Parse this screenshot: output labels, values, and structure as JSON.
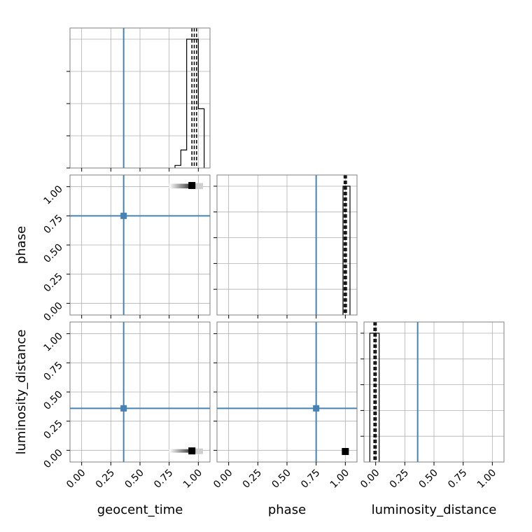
{
  "chart_data": {
    "type": "corner",
    "parameters": [
      "geocent_time",
      "phase",
      "luminosity_distance"
    ],
    "axis_labels": {
      "x": [
        "geocent_time",
        "phase",
        "luminosity_distance"
      ],
      "y": [
        "phase",
        "luminosity_distance"
      ]
    },
    "ticks": [
      0.0,
      0.25,
      0.5,
      0.75,
      1.0
    ],
    "tick_labels": [
      "0.00",
      "0.25",
      "0.50",
      "0.75",
      "1.00"
    ],
    "ranges": [
      [
        -0.1,
        1.1
      ],
      [
        -0.1,
        1.1
      ],
      [
        -0.1,
        1.1
      ]
    ],
    "grid": true,
    "truth_color": "#4682b4",
    "truths": [
      0.36,
      0.75,
      0.36
    ],
    "histograms": [
      {
        "parameter": "geocent_time",
        "bins": [
          0.8,
          0.85,
          0.9,
          0.95,
          1.0,
          1.05
        ],
        "counts": [
          0.02,
          0.14,
          1.0,
          1.0,
          0.46
        ],
        "quantiles": [
          0.945,
          0.965,
          0.985
        ]
      },
      {
        "parameter": "phase",
        "bins": [
          0.98,
          1.0,
          1.04
        ],
        "counts": [
          1.0,
          1.0
        ],
        "quantiles": [
          0.99,
          1.0,
          1.01
        ]
      },
      {
        "parameter": "luminosity_distance",
        "bins": [
          -0.05,
          0.0,
          0.03
        ],
        "counts": [
          1.0,
          1.0
        ],
        "quantiles": [
          -0.015,
          -0.005,
          0.005
        ]
      }
    ],
    "scatter_panels": [
      {
        "x": "geocent_time",
        "y": "phase",
        "spread": [
          0.75,
          1.02,
          0.985,
          1.025
        ],
        "peak": [
          0.945,
          1.01
        ]
      },
      {
        "x": "geocent_time",
        "y": "luminosity_distance",
        "spread": [
          0.75,
          1.02,
          -0.02,
          0.01
        ],
        "peak": [
          0.945,
          -0.005
        ]
      },
      {
        "x": "phase",
        "y": "luminosity_distance",
        "spread": null,
        "peak": [
          1.0,
          -0.01
        ]
      }
    ]
  }
}
